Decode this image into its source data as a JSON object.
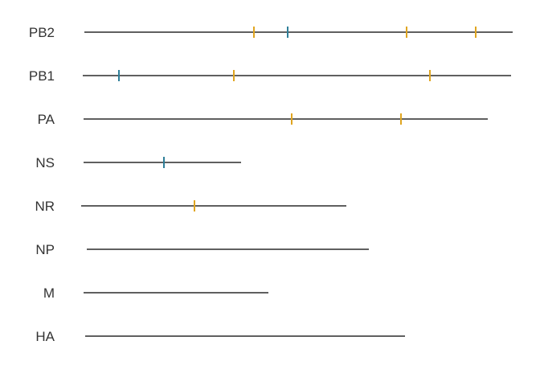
{
  "colors": {
    "amber": "#E0A520",
    "teal": "#2E7F99",
    "line": "#000000",
    "label": "#333333"
  },
  "segments": [
    {
      "label": "PB2",
      "start": 105,
      "end": 638,
      "ticks": [
        {
          "pos": 316,
          "color": "amber"
        },
        {
          "pos": 358,
          "color": "teal"
        },
        {
          "pos": 506,
          "color": "amber"
        },
        {
          "pos": 592,
          "color": "amber"
        }
      ]
    },
    {
      "label": "PB1",
      "start": 103,
      "end": 636,
      "ticks": [
        {
          "pos": 148,
          "color": "teal"
        },
        {
          "pos": 291,
          "color": "amber"
        },
        {
          "pos": 535,
          "color": "amber"
        }
      ]
    },
    {
      "label": "PA",
      "start": 104,
      "end": 607,
      "ticks": [
        {
          "pos": 363,
          "color": "amber"
        },
        {
          "pos": 499,
          "color": "amber"
        }
      ]
    },
    {
      "label": "NS",
      "start": 104,
      "end": 300,
      "ticks": [
        {
          "pos": 204,
          "color": "teal"
        }
      ]
    },
    {
      "label": "NR",
      "start": 101,
      "end": 431,
      "ticks": [
        {
          "pos": 242,
          "color": "amber"
        }
      ]
    },
    {
      "label": "NP",
      "start": 108,
      "end": 459,
      "ticks": []
    },
    {
      "label": "M",
      "start": 104,
      "end": 334,
      "ticks": []
    },
    {
      "label": "HA",
      "start": 106,
      "end": 504,
      "ticks": []
    }
  ]
}
